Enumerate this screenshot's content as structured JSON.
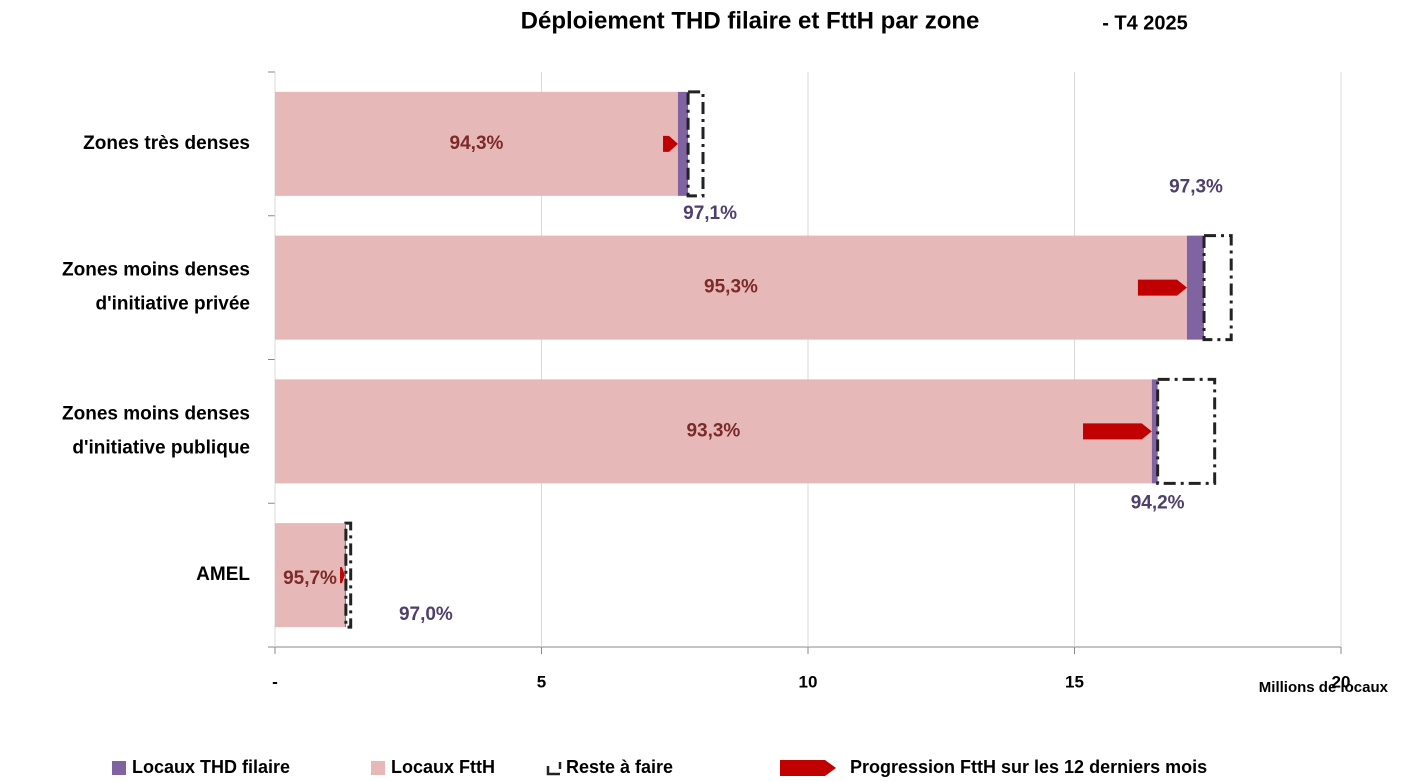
{
  "chart_data": {
    "type": "stacked-bar-horizontal",
    "title": "Déploiement THD filaire et FttH par zone",
    "subtitle": "- T4 2025",
    "x_label": "Millions de locaux",
    "categories": [
      [
        "Zones très denses"
      ],
      [
        "Zones moins denses",
        "d'initiative privée"
      ],
      [
        "Zones moins denses",
        "d'initiative publique"
      ],
      [
        "AMEL"
      ]
    ],
    "series": [
      {
        "name": "Locaux THD filaire",
        "color": "#8064a2",
        "values": [
          0.19,
          0.32,
          0.11,
          0.02
        ],
        "share_labels": [
          "97,1%",
          "97,3%",
          "94,2%",
          "97,0%"
        ],
        "label_color": "#4f3f6b"
      },
      {
        "name": "Locaux FttH",
        "color": "#e6b8b7",
        "values": [
          7.56,
          17.11,
          16.45,
          1.31
        ],
        "share_labels": [
          "94,3%",
          "95,3%",
          "93,3%",
          "95,7%"
        ],
        "label_color": "#7b2a2a"
      },
      {
        "name": "Reste à faire",
        "color": "#222222",
        "values": [
          0.28,
          0.51,
          1.07,
          0.09
        ]
      },
      {
        "name": "Progression FttH sur les 12 derniers mois",
        "color": "#c00000",
        "values": [
          0.28,
          0.92,
          1.29,
          0.09
        ]
      }
    ],
    "xlim": [
      0,
      20
    ],
    "xticks": [
      {
        "value": 0,
        "label": "-"
      },
      5,
      10,
      15,
      20
    ]
  }
}
